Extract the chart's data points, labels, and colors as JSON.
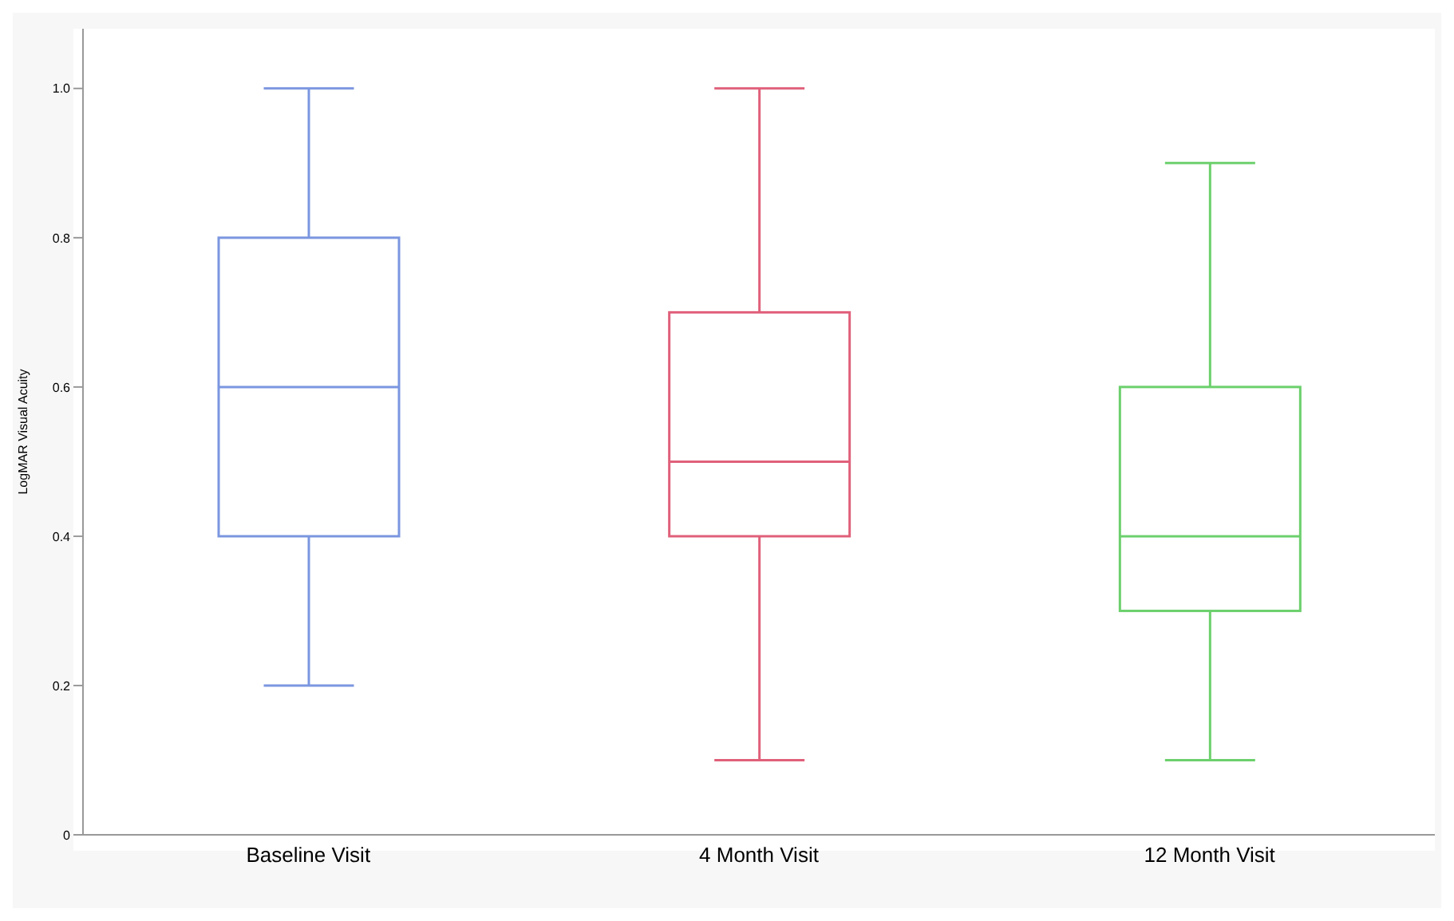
{
  "chart_data": {
    "type": "box",
    "ylabel": "LogMAR Visual Acuity",
    "categories": [
      "Baseline Visit",
      "4 Month Visit",
      "12 Month Visit"
    ],
    "colors": [
      "#7b96e0",
      "#e0607a",
      "#6cd06c"
    ],
    "boxes": [
      {
        "low": 0.2,
        "q1": 0.4,
        "median": 0.6,
        "q3": 0.8,
        "high": 1.0
      },
      {
        "low": 0.1,
        "q1": 0.4,
        "median": 0.5,
        "q3": 0.7,
        "high": 1.0
      },
      {
        "low": 0.1,
        "q1": 0.3,
        "median": 0.4,
        "q3": 0.6,
        "high": 0.9
      }
    ],
    "ylim": [
      0,
      1.08
    ],
    "yticks": [
      0,
      0.2,
      0.4,
      0.6,
      0.8,
      {
        "value": 1,
        "label": "1.0"
      }
    ]
  }
}
